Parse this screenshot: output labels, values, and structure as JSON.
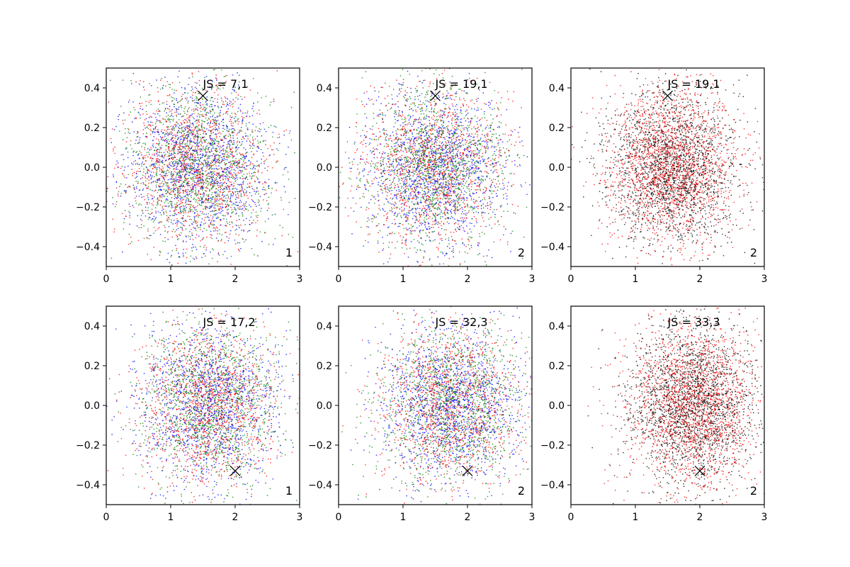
{
  "chart_data": [
    {
      "type": "scatter",
      "panel": "top-left",
      "annotation": "JS = 7,1",
      "corner_label": "1",
      "xlim": [
        0,
        3
      ],
      "ylim": [
        -0.5,
        0.5
      ],
      "xticks": [
        "0",
        "1",
        "2",
        "3"
      ],
      "yticks": [
        "−0.4",
        "−0.2",
        "0.0",
        "0.2",
        "0.4"
      ],
      "marker": {
        "x": 1.5,
        "y": 0.36
      },
      "point_cloud": {
        "center_x": 1.4,
        "spread_x": 0.55,
        "center_y": 0.0,
        "spread_y": 0.2,
        "approx_points": 4000
      },
      "series_colors": [
        "#0000ff",
        "#ff0000",
        "#008000"
      ]
    },
    {
      "type": "scatter",
      "panel": "top-middle",
      "annotation": "JS = 19,1",
      "corner_label": "2",
      "xlim": [
        0,
        3
      ],
      "ylim": [
        -0.5,
        0.5
      ],
      "xticks": [
        "0",
        "1",
        "2",
        "3"
      ],
      "yticks": [
        "−0.4",
        "−0.2",
        "0.0",
        "0.2",
        "0.4"
      ],
      "marker": {
        "x": 1.5,
        "y": 0.36
      },
      "point_cloud": {
        "center_x": 1.5,
        "spread_x": 0.55,
        "center_y": 0.0,
        "spread_y": 0.2,
        "approx_points": 4000
      },
      "series_colors": [
        "#0000ff",
        "#ff0000",
        "#008000"
      ]
    },
    {
      "type": "scatter",
      "panel": "top-right",
      "annotation": "JS = 19,1",
      "corner_label": "2",
      "xlim": [
        0,
        3
      ],
      "ylim": [
        -0.5,
        0.5
      ],
      "xticks": [
        "0",
        "1",
        "2",
        "3"
      ],
      "yticks": [
        "−0.4",
        "−0.2",
        "0.0",
        "0.2",
        "0.4"
      ],
      "marker": {
        "x": 1.5,
        "y": 0.36
      },
      "point_cloud": {
        "center_x": 1.55,
        "spread_x": 0.5,
        "center_y": 0.0,
        "spread_y": 0.2,
        "approx_points": 4000
      },
      "series_colors": [
        "#ff0000",
        "#000000"
      ]
    },
    {
      "type": "scatter",
      "panel": "bottom-left",
      "annotation": "JS = 17,2",
      "corner_label": "1",
      "xlim": [
        0,
        3
      ],
      "ylim": [
        -0.5,
        0.5
      ],
      "xticks": [
        "0",
        "1",
        "2",
        "3"
      ],
      "yticks": [
        "−0.4",
        "−0.2",
        "0.0",
        "0.2",
        "0.4"
      ],
      "marker": {
        "x": 2.0,
        "y": -0.33
      },
      "point_cloud": {
        "center_x": 1.6,
        "spread_x": 0.55,
        "center_y": 0.0,
        "spread_y": 0.2,
        "approx_points": 4000
      },
      "series_colors": [
        "#0000ff",
        "#ff0000",
        "#008000"
      ]
    },
    {
      "type": "scatter",
      "panel": "bottom-middle",
      "annotation": "JS = 32,3",
      "corner_label": "2",
      "xlim": [
        0,
        3
      ],
      "ylim": [
        -0.5,
        0.5
      ],
      "xticks": [
        "0",
        "1",
        "2",
        "3"
      ],
      "yticks": [
        "−0.4",
        "−0.2",
        "0.0",
        "0.2",
        "0.4"
      ],
      "marker": {
        "x": 2.0,
        "y": -0.33
      },
      "point_cloud": {
        "center_x": 1.75,
        "spread_x": 0.55,
        "center_y": 0.0,
        "spread_y": 0.2,
        "approx_points": 4000
      },
      "series_colors": [
        "#0000ff",
        "#ff0000",
        "#008000"
      ]
    },
    {
      "type": "scatter",
      "panel": "bottom-right",
      "annotation": "JS = 33,3",
      "corner_label": "2",
      "xlim": [
        0,
        3
      ],
      "ylim": [
        -0.5,
        0.5
      ],
      "xticks": [
        "0",
        "1",
        "2",
        "3"
      ],
      "yticks": [
        "−0.4",
        "−0.2",
        "0.0",
        "0.2",
        "0.4"
      ],
      "marker": {
        "x": 2.0,
        "y": -0.33
      },
      "point_cloud": {
        "center_x": 1.9,
        "spread_x": 0.5,
        "center_y": 0.0,
        "spread_y": 0.2,
        "approx_points": 4000
      },
      "series_colors": [
        "#ff0000",
        "#000000"
      ]
    }
  ]
}
